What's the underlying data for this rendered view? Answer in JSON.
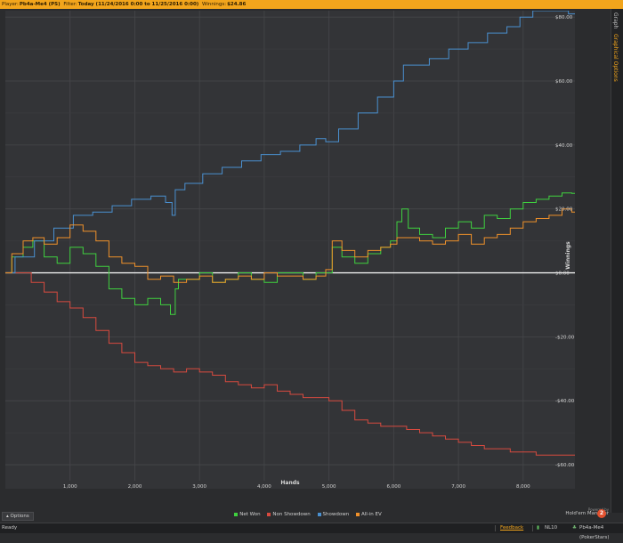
{
  "header": {
    "player_label": "Player:",
    "player_value": "Pb4a-Me4 (PS)",
    "filter_label": "Filter:",
    "filter_value": "Today (11/24/2016 0:00 to 11/25/2016 0:00)",
    "winnings_label": "Winnings:",
    "winnings_value": "$24.86"
  },
  "side_tabs": {
    "graph": "Graph",
    "options": "Graphical Options"
  },
  "chart_data": {
    "type": "line",
    "xlabel": "Hands",
    "ylabel": "Winnings",
    "xlim": [
      0,
      8800
    ],
    "ylim": [
      -65,
      82
    ],
    "x_ticks": [
      1000,
      2000,
      3000,
      4000,
      5000,
      6000,
      7000,
      8000
    ],
    "x_tick_labels": [
      "1,000",
      "2,000",
      "3,000",
      "4,000",
      "5,000",
      "6,000",
      "7,000",
      "8,000"
    ],
    "y_ticks": [
      80,
      60,
      40,
      20,
      0,
      -20,
      -40,
      -60
    ],
    "y_tick_labels": [
      "$80.00",
      "$60.00",
      "$40.00",
      "$20.00",
      "$0.00",
      "-$20.00",
      "-$40.00",
      "-$60.00"
    ],
    "grid": true,
    "legend": "bottom",
    "series": [
      {
        "name": "Net Won",
        "color": "#3fd13f",
        "x": [
          0,
          200,
          350,
          500,
          700,
          900,
          1100,
          1300,
          1500,
          1700,
          1900,
          2100,
          2300,
          2500,
          2600,
          2650,
          2700,
          2900,
          3100,
          3300,
          3500,
          3700,
          3900,
          4100,
          4300,
          4500,
          4700,
          4900,
          5000,
          5100,
          5300,
          5500,
          5700,
          5900,
          6000,
          6100,
          6150,
          6300,
          6500,
          6700,
          6900,
          7100,
          7300,
          7500,
          7700,
          7900,
          8100,
          8300,
          8500,
          8700,
          8800
        ],
        "y": [
          0,
          5,
          8,
          10,
          5,
          3,
          8,
          6,
          2,
          -5,
          -8,
          -10,
          -8,
          -10,
          -13,
          -5,
          -2,
          -2,
          0,
          -3,
          -2,
          0,
          -2,
          -3,
          0,
          0,
          -2,
          0,
          0,
          8,
          5,
          3,
          6,
          8,
          10,
          16,
          20,
          14,
          12,
          11,
          14,
          16,
          14,
          18,
          17,
          20,
          22,
          23,
          24,
          25,
          24.86
        ]
      },
      {
        "name": "Non Showdown",
        "color": "#d84a3f",
        "x": [
          0,
          300,
          500,
          700,
          900,
          1100,
          1300,
          1500,
          1700,
          1900,
          2100,
          2300,
          2500,
          2700,
          2900,
          3100,
          3300,
          3500,
          3700,
          3900,
          4100,
          4300,
          4500,
          4700,
          4900,
          5100,
          5300,
          5500,
          5700,
          5900,
          6100,
          6300,
          6500,
          6700,
          6900,
          7100,
          7300,
          7500,
          7700,
          7900,
          8100,
          8300,
          8500,
          8700,
          8800
        ],
        "y": [
          0,
          0,
          -3,
          -6,
          -9,
          -11,
          -14,
          -18,
          -22,
          -25,
          -28,
          -29,
          -30,
          -31,
          -30,
          -31,
          -32,
          -34,
          -35,
          -36,
          -35,
          -37,
          -38,
          -39,
          -39,
          -40,
          -43,
          -46,
          -47,
          -48,
          -48,
          -49,
          -50,
          -51,
          -52,
          -53,
          -54,
          -55,
          -55,
          -56,
          -56,
          -57,
          -57,
          -57,
          -57
        ]
      },
      {
        "name": "Showdown",
        "color": "#4a90d0",
        "x": [
          0,
          300,
          600,
          900,
          1200,
          1500,
          1800,
          2100,
          2400,
          2550,
          2600,
          2650,
          2900,
          3200,
          3500,
          3800,
          4100,
          4400,
          4700,
          4900,
          5000,
          5300,
          5600,
          5900,
          6100,
          6200,
          6400,
          6700,
          7000,
          7300,
          7600,
          7900,
          8000,
          8300,
          8600,
          8800
        ],
        "y": [
          0,
          5,
          10,
          14,
          18,
          19,
          21,
          23,
          24,
          22,
          18,
          26,
          28,
          31,
          33,
          35,
          37,
          38,
          40,
          42,
          41,
          45,
          50,
          55,
          60,
          65,
          65,
          67,
          70,
          72,
          75,
          77,
          80,
          82,
          82,
          81
        ]
      },
      {
        "name": "All-in EV",
        "color": "#f0912a",
        "x": [
          0,
          200,
          350,
          500,
          700,
          900,
          1100,
          1300,
          1500,
          1700,
          1900,
          2100,
          2300,
          2500,
          2700,
          2900,
          3100,
          3300,
          3500,
          3700,
          3900,
          4100,
          4300,
          4500,
          4700,
          4900,
          5000,
          5100,
          5300,
          5500,
          5700,
          5900,
          6000,
          6100,
          6300,
          6500,
          6700,
          6900,
          7100,
          7300,
          7500,
          7700,
          7900,
          8100,
          8300,
          8500,
          8700,
          8800
        ],
        "y": [
          0,
          6,
          10,
          11,
          9,
          11,
          15,
          13,
          10,
          5,
          3,
          2,
          -2,
          -1,
          -3,
          -2,
          -1,
          -3,
          -2,
          -1,
          -2,
          0,
          -1,
          -1,
          -2,
          -1,
          1,
          10,
          7,
          5,
          7,
          8,
          9,
          11,
          11,
          10,
          9,
          10,
          12,
          9,
          11,
          12,
          14,
          16,
          17,
          18,
          20,
          19
        ]
      }
    ]
  },
  "options_button": "Options",
  "powered_by": "Powered by",
  "brand": "Hold'em Manager",
  "status": {
    "ready": "Ready",
    "feedback": "Feedback",
    "stake": "NL10",
    "account": "Pb4a-Me4 (PokerStars)"
  }
}
